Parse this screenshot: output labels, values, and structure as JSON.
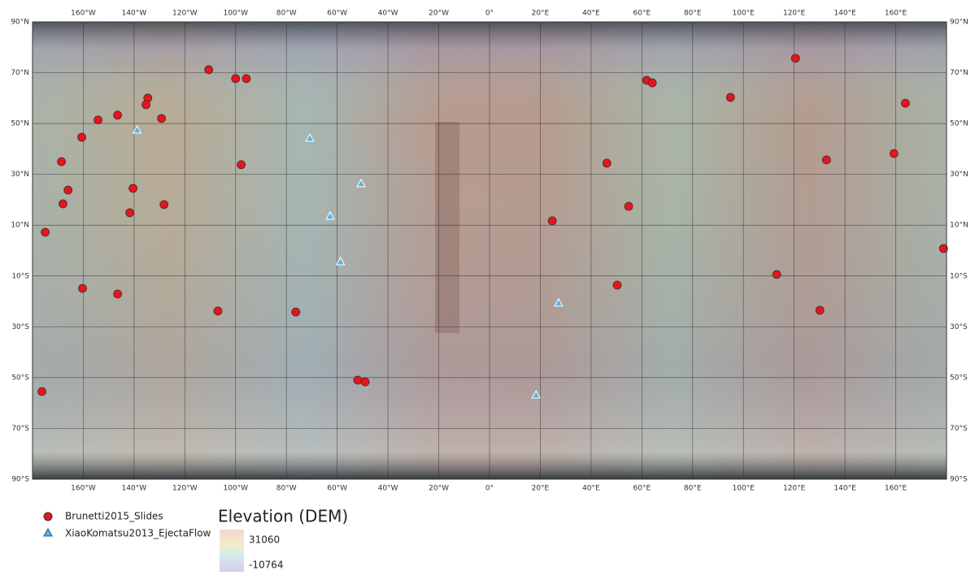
{
  "map": {
    "lon_range": [
      -180,
      180
    ],
    "lat_range": [
      90,
      -90
    ],
    "lon_ticks": [
      {
        "value": -160,
        "label": "160°W"
      },
      {
        "value": -140,
        "label": "140°W"
      },
      {
        "value": -120,
        "label": "120°W"
      },
      {
        "value": -100,
        "label": "100°W"
      },
      {
        "value": -80,
        "label": "80°W"
      },
      {
        "value": -60,
        "label": "60°W"
      },
      {
        "value": -40,
        "label": "40°W"
      },
      {
        "value": -20,
        "label": "20°W"
      },
      {
        "value": 0,
        "label": "0°"
      },
      {
        "value": 20,
        "label": "20°E"
      },
      {
        "value": 40,
        "label": "40°E"
      },
      {
        "value": 60,
        "label": "60°E"
      },
      {
        "value": 80,
        "label": "80°E"
      },
      {
        "value": 100,
        "label": "100°E"
      },
      {
        "value": 120,
        "label": "120°E"
      },
      {
        "value": 140,
        "label": "140°E"
      },
      {
        "value": 160,
        "label": "160°E"
      }
    ],
    "lat_ticks": [
      {
        "value": 90,
        "label": "90°N"
      },
      {
        "value": 70,
        "label": "70°N"
      },
      {
        "value": 50,
        "label": "50°N"
      },
      {
        "value": 30,
        "label": "30°N"
      },
      {
        "value": 10,
        "label": "10°N"
      },
      {
        "value": -10,
        "label": "10°S"
      },
      {
        "value": -30,
        "label": "30°S"
      },
      {
        "value": -50,
        "label": "50°S"
      },
      {
        "value": -70,
        "label": "70°S"
      },
      {
        "value": -90,
        "label": "90°S"
      }
    ],
    "layers": [
      {
        "name": "Brunetti2015_Slides",
        "marker": "circle",
        "color": "#e8141b",
        "lon": [
          -110.6,
          -100,
          -95.8,
          -134.6,
          -135.3,
          -146.5,
          -154.2,
          -129.2,
          -160.6,
          -168.6,
          -97.8,
          -166,
          -140.4,
          -168,
          -128.2,
          -141.7,
          -175,
          -160.3,
          -146.5,
          -107,
          -76.3,
          -51.9,
          -49,
          -176.3,
          120.5,
          61.9,
          64.1,
          94.9,
          163.8,
          159.3,
          132.7,
          46.2,
          54.8,
          24.7,
          178.8,
          113.1,
          50.3,
          130.1
        ],
        "lat": [
          71.2,
          67.7,
          67.7,
          60,
          57.4,
          53.3,
          51.4,
          52,
          44.6,
          35,
          33.8,
          23.8,
          24.5,
          18.4,
          18.1,
          14.9,
          7.2,
          -14.9,
          -17.1,
          -23.8,
          -24.2,
          -51,
          -51.7,
          -55.5,
          75.7,
          67,
          66,
          60.3,
          58,
          38.2,
          35.7,
          34.4,
          17.4,
          11.7,
          0.8,
          -9.4,
          -13.6,
          -23.5
        ]
      },
      {
        "name": "XiaoKomatsu2013_EjectaFlow",
        "marker": "triangle",
        "color": "#5ab4e8",
        "lon": [
          -138.8,
          -70.8,
          -50.6,
          -62.8,
          -58.7,
          27.2,
          18.3
        ],
        "lat": [
          47.5,
          44.3,
          26.4,
          13.6,
          -4.3,
          -20.6,
          -56.8
        ]
      }
    ],
    "elevation": {
      "title": "Elevation (DEM)",
      "max": 31060,
      "min": -10764
    }
  }
}
